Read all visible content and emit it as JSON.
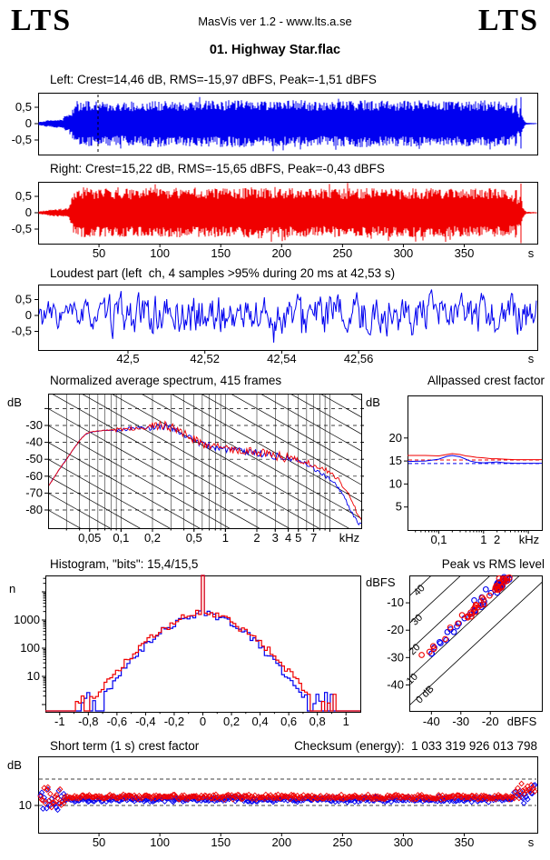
{
  "header": {
    "logo_left": "LTS",
    "logo_right": "LTS",
    "app_line": "MasVis ver 1.2 - www.lts.a.se",
    "track_title": "01. Highway Star.flac"
  },
  "colors": {
    "left_channel": "#0000f0",
    "right_channel": "#f00000",
    "axis": "#000000",
    "background": "#ffffff"
  },
  "chart_data": [
    {
      "id": "wave_left",
      "type": "area",
      "channel": "left",
      "title": "Left: Crest=14,46 dB, RMS=-15,97 dBFS, Peak=-1,51 dBFS",
      "crest_db": 14.46,
      "rms_dbfs": -15.97,
      "peak_dbfs": -1.51,
      "yticks": [
        [
          "0,5",
          0.5
        ],
        [
          "0",
          0
        ],
        [
          "-0,5",
          -0.5
        ]
      ],
      "tmax": 410,
      "marker_time_s": 42.53,
      "marker_frac": 0.12,
      "seed": 11,
      "envelope": [
        [
          0,
          0.05
        ],
        [
          4,
          0.08
        ],
        [
          8,
          0.11
        ],
        [
          14,
          0.12
        ],
        [
          19,
          0.13
        ],
        [
          21,
          0.22
        ],
        [
          24,
          0.28
        ],
        [
          26,
          0.3
        ],
        [
          28,
          0.5
        ],
        [
          30,
          0.66
        ],
        [
          45,
          0.66
        ],
        [
          70,
          0.64
        ],
        [
          100,
          0.69
        ],
        [
          130,
          0.66
        ],
        [
          160,
          0.69
        ],
        [
          190,
          0.66
        ],
        [
          215,
          0.69
        ],
        [
          235,
          0.64
        ],
        [
          265,
          0.69
        ],
        [
          295,
          0.66
        ],
        [
          320,
          0.69
        ],
        [
          345,
          0.66
        ],
        [
          370,
          0.68
        ],
        [
          383,
          0.65
        ],
        [
          388,
          0.6
        ],
        [
          391,
          0.42
        ],
        [
          392.6,
          0.88
        ],
        [
          393.4,
          0.42
        ],
        [
          395.5,
          0.3
        ],
        [
          396.6,
          0.9
        ],
        [
          397.4,
          0.28
        ],
        [
          399,
          0.12
        ],
        [
          401,
          0.03
        ],
        [
          410,
          0.015
        ]
      ]
    },
    {
      "id": "wave_right",
      "type": "area",
      "channel": "right",
      "title": "Right: Crest=15,22 dB, RMS=-15,65 dBFS, Peak=-0,43 dBFS",
      "crest_db": 15.22,
      "rms_dbfs": -15.65,
      "peak_dbfs": -0.43,
      "yticks": [
        [
          "0,5",
          0.5
        ],
        [
          "0",
          0
        ],
        [
          "-0,5",
          -0.5
        ]
      ],
      "xticks": [
        [
          "50",
          50
        ],
        [
          "100",
          100
        ],
        [
          "150",
          150
        ],
        [
          "200",
          200
        ],
        [
          "250",
          250
        ],
        [
          "300",
          300
        ],
        [
          "350",
          350
        ]
      ],
      "xunit": "s",
      "tmax": 410,
      "seed": 22,
      "envelope": [
        [
          0,
          0.04
        ],
        [
          4,
          0.07
        ],
        [
          8,
          0.1
        ],
        [
          14,
          0.11
        ],
        [
          20,
          0.12
        ],
        [
          24,
          0.13
        ],
        [
          26,
          0.3
        ],
        [
          28,
          0.6
        ],
        [
          30,
          0.76
        ],
        [
          45,
          0.72
        ],
        [
          70,
          0.7
        ],
        [
          100,
          0.74
        ],
        [
          130,
          0.7
        ],
        [
          160,
          0.73
        ],
        [
          190,
          0.76
        ],
        [
          215,
          0.71
        ],
        [
          235,
          0.7
        ],
        [
          265,
          0.73
        ],
        [
          295,
          0.7
        ],
        [
          320,
          0.72
        ],
        [
          345,
          0.7
        ],
        [
          370,
          0.71
        ],
        [
          383,
          0.68
        ],
        [
          388,
          0.62
        ],
        [
          391,
          0.5
        ],
        [
          392.6,
          0.93
        ],
        [
          393.4,
          0.45
        ],
        [
          395.5,
          0.35
        ],
        [
          396.6,
          0.96
        ],
        [
          397.4,
          0.3
        ],
        [
          399,
          0.12
        ],
        [
          401,
          0.03
        ],
        [
          410,
          0.015
        ]
      ]
    },
    {
      "id": "loudest",
      "type": "line",
      "channel": "left",
      "title": "Loudest part (left  ch, 4 samples >95% during 20 ms at 42,53 s)",
      "yticks": [
        [
          "0,5",
          0.5
        ],
        [
          "0",
          0
        ],
        [
          "-0,5",
          -0.5
        ]
      ],
      "xticks": [
        [
          "42,5",
          0.18
        ],
        [
          "42,52",
          0.334
        ],
        [
          "42,54",
          0.488
        ],
        [
          "42,56",
          0.642
        ]
      ],
      "xunit": "s",
      "seed": 33,
      "spike": {
        "frac": 0.47,
        "value": -0.85
      }
    },
    {
      "id": "spectrum",
      "type": "line",
      "title": "Normalized average spectrum, 415 frames",
      "ylabel": "dB",
      "ylabel_right": "dB",
      "yticks": [
        [
          "-30",
          -30
        ],
        [
          "-40",
          -40
        ],
        [
          "-50",
          -50
        ],
        [
          "-60",
          -60
        ],
        [
          "-70",
          -70
        ],
        [
          "-80",
          -80
        ]
      ],
      "xticks": [
        [
          "0,05",
          0.05
        ],
        [
          "0,1",
          0.1
        ],
        [
          "0,2",
          0.2
        ],
        [
          "0,5",
          0.5
        ],
        [
          "1",
          1
        ],
        [
          "2",
          2
        ],
        [
          "3",
          3
        ],
        [
          "4",
          4
        ],
        [
          "5",
          5
        ],
        [
          "7",
          7
        ]
      ],
      "xunit": "kHz",
      "fmin": 0.02,
      "fmax": 20,
      "diag_slope_db_per_decade": 35,
      "seed": 44,
      "series": [
        {
          "channel": "left",
          "points": [
            [
              0.02,
              -66
            ],
            [
              0.025,
              -57
            ],
            [
              0.03,
              -50
            ],
            [
              0.035,
              -44
            ],
            [
              0.04,
              -39
            ],
            [
              0.045,
              -35.5
            ],
            [
              0.05,
              -34
            ],
            [
              0.06,
              -33.3
            ],
            [
              0.07,
              -33
            ],
            [
              0.09,
              -32.8
            ],
            [
              0.11,
              -32.2
            ],
            [
              0.14,
              -31.6
            ],
            [
              0.18,
              -31.2
            ],
            [
              0.22,
              -30.8
            ],
            [
              0.28,
              -30.6
            ],
            [
              0.33,
              -32
            ],
            [
              0.4,
              -35
            ],
            [
              0.5,
              -39
            ],
            [
              0.6,
              -41
            ],
            [
              0.8,
              -43
            ],
            [
              1,
              -44
            ],
            [
              1.3,
              -44.6
            ],
            [
              1.7,
              -45.6
            ],
            [
              2,
              -46.2
            ],
            [
              2.6,
              -47.2
            ],
            [
              3,
              -48.2
            ],
            [
              4,
              -49.8
            ],
            [
              5,
              -51
            ],
            [
              6,
              -53
            ],
            [
              7,
              -55.5
            ],
            [
              8,
              -57.5
            ],
            [
              9,
              -59.5
            ],
            [
              10,
              -61.5
            ],
            [
              11.5,
              -65
            ],
            [
              13,
              -70
            ],
            [
              15,
              -77
            ],
            [
              17,
              -84
            ],
            [
              19,
              -88
            ],
            [
              20,
              -89
            ]
          ]
        },
        {
          "channel": "right",
          "points": [
            [
              0.02,
              -66
            ],
            [
              0.025,
              -57
            ],
            [
              0.03,
              -50
            ],
            [
              0.035,
              -44
            ],
            [
              0.04,
              -39
            ],
            [
              0.045,
              -35.5
            ],
            [
              0.05,
              -34
            ],
            [
              0.06,
              -33.2
            ],
            [
              0.07,
              -32.9
            ],
            [
              0.09,
              -32.6
            ],
            [
              0.11,
              -32
            ],
            [
              0.14,
              -31.4
            ],
            [
              0.18,
              -31
            ],
            [
              0.22,
              -30.4
            ],
            [
              0.28,
              -30.2
            ],
            [
              0.33,
              -31.6
            ],
            [
              0.4,
              -34.6
            ],
            [
              0.5,
              -38.6
            ],
            [
              0.6,
              -40.6
            ],
            [
              0.8,
              -42.6
            ],
            [
              1,
              -43.6
            ],
            [
              1.3,
              -44.2
            ],
            [
              1.7,
              -45.2
            ],
            [
              2,
              -45.8
            ],
            [
              2.6,
              -46.8
            ],
            [
              3,
              -47.8
            ],
            [
              4,
              -49.2
            ],
            [
              5,
              -50.4
            ],
            [
              6,
              -51.8
            ],
            [
              7,
              -53.4
            ],
            [
              8,
              -54.8
            ],
            [
              9,
              -56.2
            ],
            [
              10,
              -57.8
            ],
            [
              11.5,
              -60.5
            ],
            [
              13,
              -64.5
            ],
            [
              15,
              -70.5
            ],
            [
              17,
              -77.5
            ],
            [
              19,
              -83.5
            ],
            [
              20,
              -85.5
            ]
          ]
        }
      ]
    },
    {
      "id": "allpassed",
      "type": "line",
      "title": "Allpassed crest factor",
      "ylabel": "dB",
      "yticks": [
        [
          "20",
          20
        ],
        [
          "15",
          15
        ],
        [
          "10",
          10
        ],
        [
          "5",
          5
        ]
      ],
      "xticks": [
        [
          "0,1",
          0.1
        ],
        [
          "1",
          1
        ],
        [
          "2",
          2
        ]
      ],
      "xunit": "kHz",
      "fmin": 0.02,
      "fmax": 20,
      "series": [
        {
          "channel": "left",
          "points": [
            [
              0.02,
              14.9
            ],
            [
              0.05,
              15
            ],
            [
              0.1,
              15.4
            ],
            [
              0.15,
              16
            ],
            [
              0.2,
              16.2
            ],
            [
              0.3,
              15.9
            ],
            [
              0.5,
              15
            ],
            [
              0.7,
              14.7
            ],
            [
              1,
              14.6
            ],
            [
              1.5,
              14.7
            ],
            [
              2,
              14.8
            ],
            [
              3,
              14.6
            ],
            [
              5,
              14.5
            ],
            [
              10,
              14.5
            ],
            [
              20,
              14.5
            ]
          ]
        },
        {
          "channel": "right",
          "points": [
            [
              0.02,
              16.2
            ],
            [
              0.05,
              16.2
            ],
            [
              0.1,
              16.1
            ],
            [
              0.15,
              16.4
            ],
            [
              0.2,
              16.6
            ],
            [
              0.3,
              16.4
            ],
            [
              0.4,
              16.1
            ],
            [
              0.5,
              16
            ],
            [
              0.7,
              15.8
            ],
            [
              1,
              15.7
            ],
            [
              1.5,
              15.5
            ],
            [
              2,
              15.5
            ],
            [
              3,
              15.4
            ],
            [
              5,
              15.3
            ],
            [
              10,
              15.3
            ],
            [
              20,
              15.3
            ]
          ]
        }
      ],
      "ref_dashed": [
        {
          "channel": "left",
          "value": 14.46
        },
        {
          "channel": "right",
          "value": 15.22
        }
      ]
    },
    {
      "id": "histogram",
      "type": "line",
      "title": "Histogram, \"bits\": 15,4/15,5",
      "bits_left": "15,4",
      "bits_right": "15,5",
      "ylabel": "n",
      "yticks": [
        [
          "1000",
          1000
        ],
        [
          "100",
          100
        ],
        [
          "10",
          10
        ]
      ],
      "xticks": [
        [
          "-1",
          -1
        ],
        [
          "-0,8",
          -0.8
        ],
        [
          "-0,6",
          -0.6
        ],
        [
          "-0,4",
          -0.4
        ],
        [
          "-0,2",
          -0.2
        ],
        [
          "0",
          0
        ],
        [
          "0,2",
          0.2
        ],
        [
          "0,4",
          0.4
        ],
        [
          "0,6",
          0.6
        ],
        [
          "0,8",
          0.8
        ],
        [
          "1",
          1
        ]
      ],
      "peak_n": 1800,
      "spike_n": 40000,
      "sigma": 0.23,
      "shape": 1.7,
      "seed": 55
    },
    {
      "id": "peak_rms",
      "type": "scatter",
      "title": "Peak vs RMS level",
      "ylabel": "dBFS",
      "yticks": [
        [
          "-10",
          -10
        ],
        [
          "-20",
          -20
        ],
        [
          "-30",
          -30
        ],
        [
          "-40",
          -40
        ]
      ],
      "xticks": [
        [
          "-40",
          -40
        ],
        [
          "-30",
          -30
        ],
        [
          "-20",
          -20
        ]
      ],
      "xunit": "dBFS",
      "diagonals": [
        [
          0,
          "0 dB"
        ],
        [
          10,
          "10"
        ],
        [
          20,
          "20"
        ],
        [
          30,
          "30"
        ],
        [
          40,
          "40"
        ]
      ],
      "seed": 66
    },
    {
      "id": "short_term",
      "type": "scatter",
      "title": "Short term (1 s) crest factor",
      "checksum": "Checksum (energy):  1 033 319 926 013 798",
      "ylabel": "dB",
      "yticks": [
        [
          "10",
          10
        ]
      ],
      "dashed_levels": [
        15,
        10
      ],
      "xticks": [
        [
          "50",
          50
        ],
        [
          "100",
          100
        ],
        [
          "150",
          150
        ],
        [
          "200",
          200
        ],
        [
          "250",
          250
        ],
        [
          "300",
          300
        ],
        [
          "350",
          350
        ]
      ],
      "xunit": "s",
      "tmax": 410,
      "mean_left": 11.15,
      "mean_right": 11.6,
      "seed": 77
    }
  ]
}
